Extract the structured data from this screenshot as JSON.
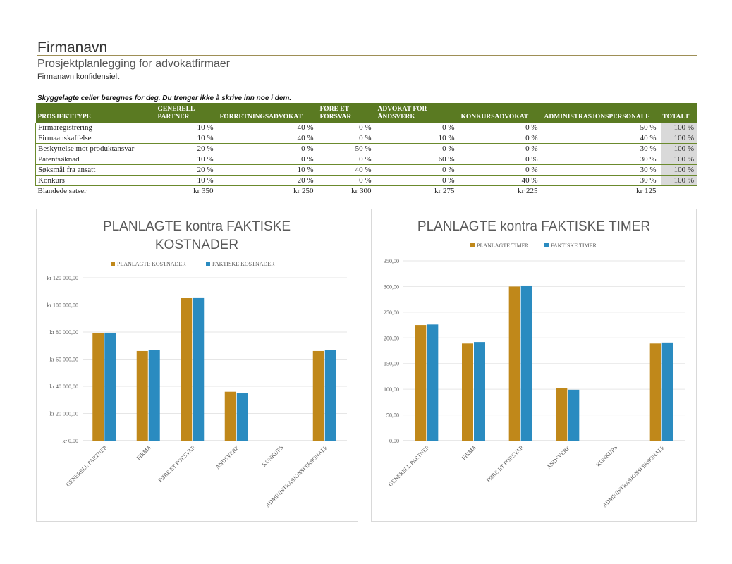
{
  "header": {
    "company": "Firmanavn",
    "subtitle": "Prosjektplanlegging for advokatfirmaer",
    "confidential": "Firmanavn konfidensielt",
    "note": "Skyggelagte celler beregnes for deg. Du trenger ikke å skrive inn noe i dem."
  },
  "table": {
    "headers": [
      "PROSJEKTTYPE",
      "GENERELL PARTNER",
      "FORRETNINGSADVOKAT",
      "FØRE ET FORSVAR",
      "ADVOKAT FOR ÅNDSVERK",
      "KONKURSADVOKAT",
      "ADMINISTRASJONSPERSONALE",
      "TOTALT"
    ],
    "rows": [
      {
        "type": "Firmaregistrering",
        "cells": [
          "10 %",
          "40 %",
          "0 %",
          "0 %",
          "0 %",
          "50 %"
        ],
        "total": "100 %"
      },
      {
        "type": "Firmaanskaffelse",
        "cells": [
          "10 %",
          "40 %",
          "0 %",
          "10 %",
          "0 %",
          "40 %"
        ],
        "total": "100 %"
      },
      {
        "type": "Beskyttelse mot produktansvar",
        "cells": [
          "20 %",
          "0 %",
          "50 %",
          "0 %",
          "0 %",
          "30 %"
        ],
        "total": "100 %"
      },
      {
        "type": "Patentsøknad",
        "cells": [
          "10 %",
          "0 %",
          "0 %",
          "60 %",
          "0 %",
          "30 %"
        ],
        "total": "100 %"
      },
      {
        "type": "Søksmål fra ansatt",
        "cells": [
          "20 %",
          "10 %",
          "40 %",
          "0 %",
          "0 %",
          "30 %"
        ],
        "total": "100 %"
      },
      {
        "type": "Konkurs",
        "cells": [
          "10 %",
          "20 %",
          "0 %",
          "0 %",
          "40 %",
          "30 %"
        ],
        "total": "100 %"
      }
    ],
    "blended": {
      "label": "Blandede satser",
      "cells": [
        "kr 350",
        "kr 250",
        "kr 300",
        "kr 275",
        "kr 225",
        "kr 125"
      ]
    }
  },
  "colors": {
    "planned": "#c0881a",
    "actual": "#2a8bc0",
    "header_green": "#5a7a22"
  },
  "chart_data": [
    {
      "type": "bar",
      "title_lines": [
        "PLANLAGTE kontra FAKTISKE",
        "KOSTNADER"
      ],
      "categories": [
        "GENERELL PARTNER",
        "FIRMA",
        "FØRE ET FORSVAR",
        "ÅNDSVERK",
        "KONKURS",
        "ADMINISTRASJONSPERSONALE"
      ],
      "series": [
        {
          "name": "PLANLAGTE KOSTNADER",
          "values": [
            79000,
            66000,
            105000,
            36000,
            0,
            66000
          ]
        },
        {
          "name": "FAKTISKE KOSTNADER",
          "values": [
            79500,
            67000,
            105500,
            34800,
            0,
            67000
          ]
        }
      ],
      "ylim": [
        0,
        120000
      ],
      "yticks": [
        0,
        20000,
        40000,
        60000,
        80000,
        100000,
        120000
      ],
      "ytick_labels": [
        "kr 0,00",
        "kr 20 000,00",
        "kr 40 000,00",
        "kr 60 000,00",
        "kr 80 000,00",
        "kr 100 000,00",
        "kr 120 000,00"
      ]
    },
    {
      "type": "bar",
      "title_lines": [
        "PLANLAGTE kontra FAKTISKE TIMER"
      ],
      "categories": [
        "GENERELL PARTNER",
        "FIRMA",
        "FØRE ET FORSVAR",
        "ÅNDSVERK",
        "KONKURS",
        "ADMINISTRASJONSPERSONALE"
      ],
      "series": [
        {
          "name": "PLANLAGTE TIMER",
          "values": [
            225,
            189,
            300,
            102,
            0,
            189
          ]
        },
        {
          "name": "FAKTISKE TIMER",
          "values": [
            226,
            192,
            302,
            99,
            0,
            191
          ]
        }
      ],
      "ylim": [
        0,
        350
      ],
      "yticks": [
        0,
        50,
        100,
        150,
        200,
        250,
        300,
        350
      ],
      "ytick_labels": [
        "0,00",
        "50,00",
        "100,00",
        "150,00",
        "200,00",
        "250,00",
        "300,00",
        "350,00"
      ]
    }
  ]
}
